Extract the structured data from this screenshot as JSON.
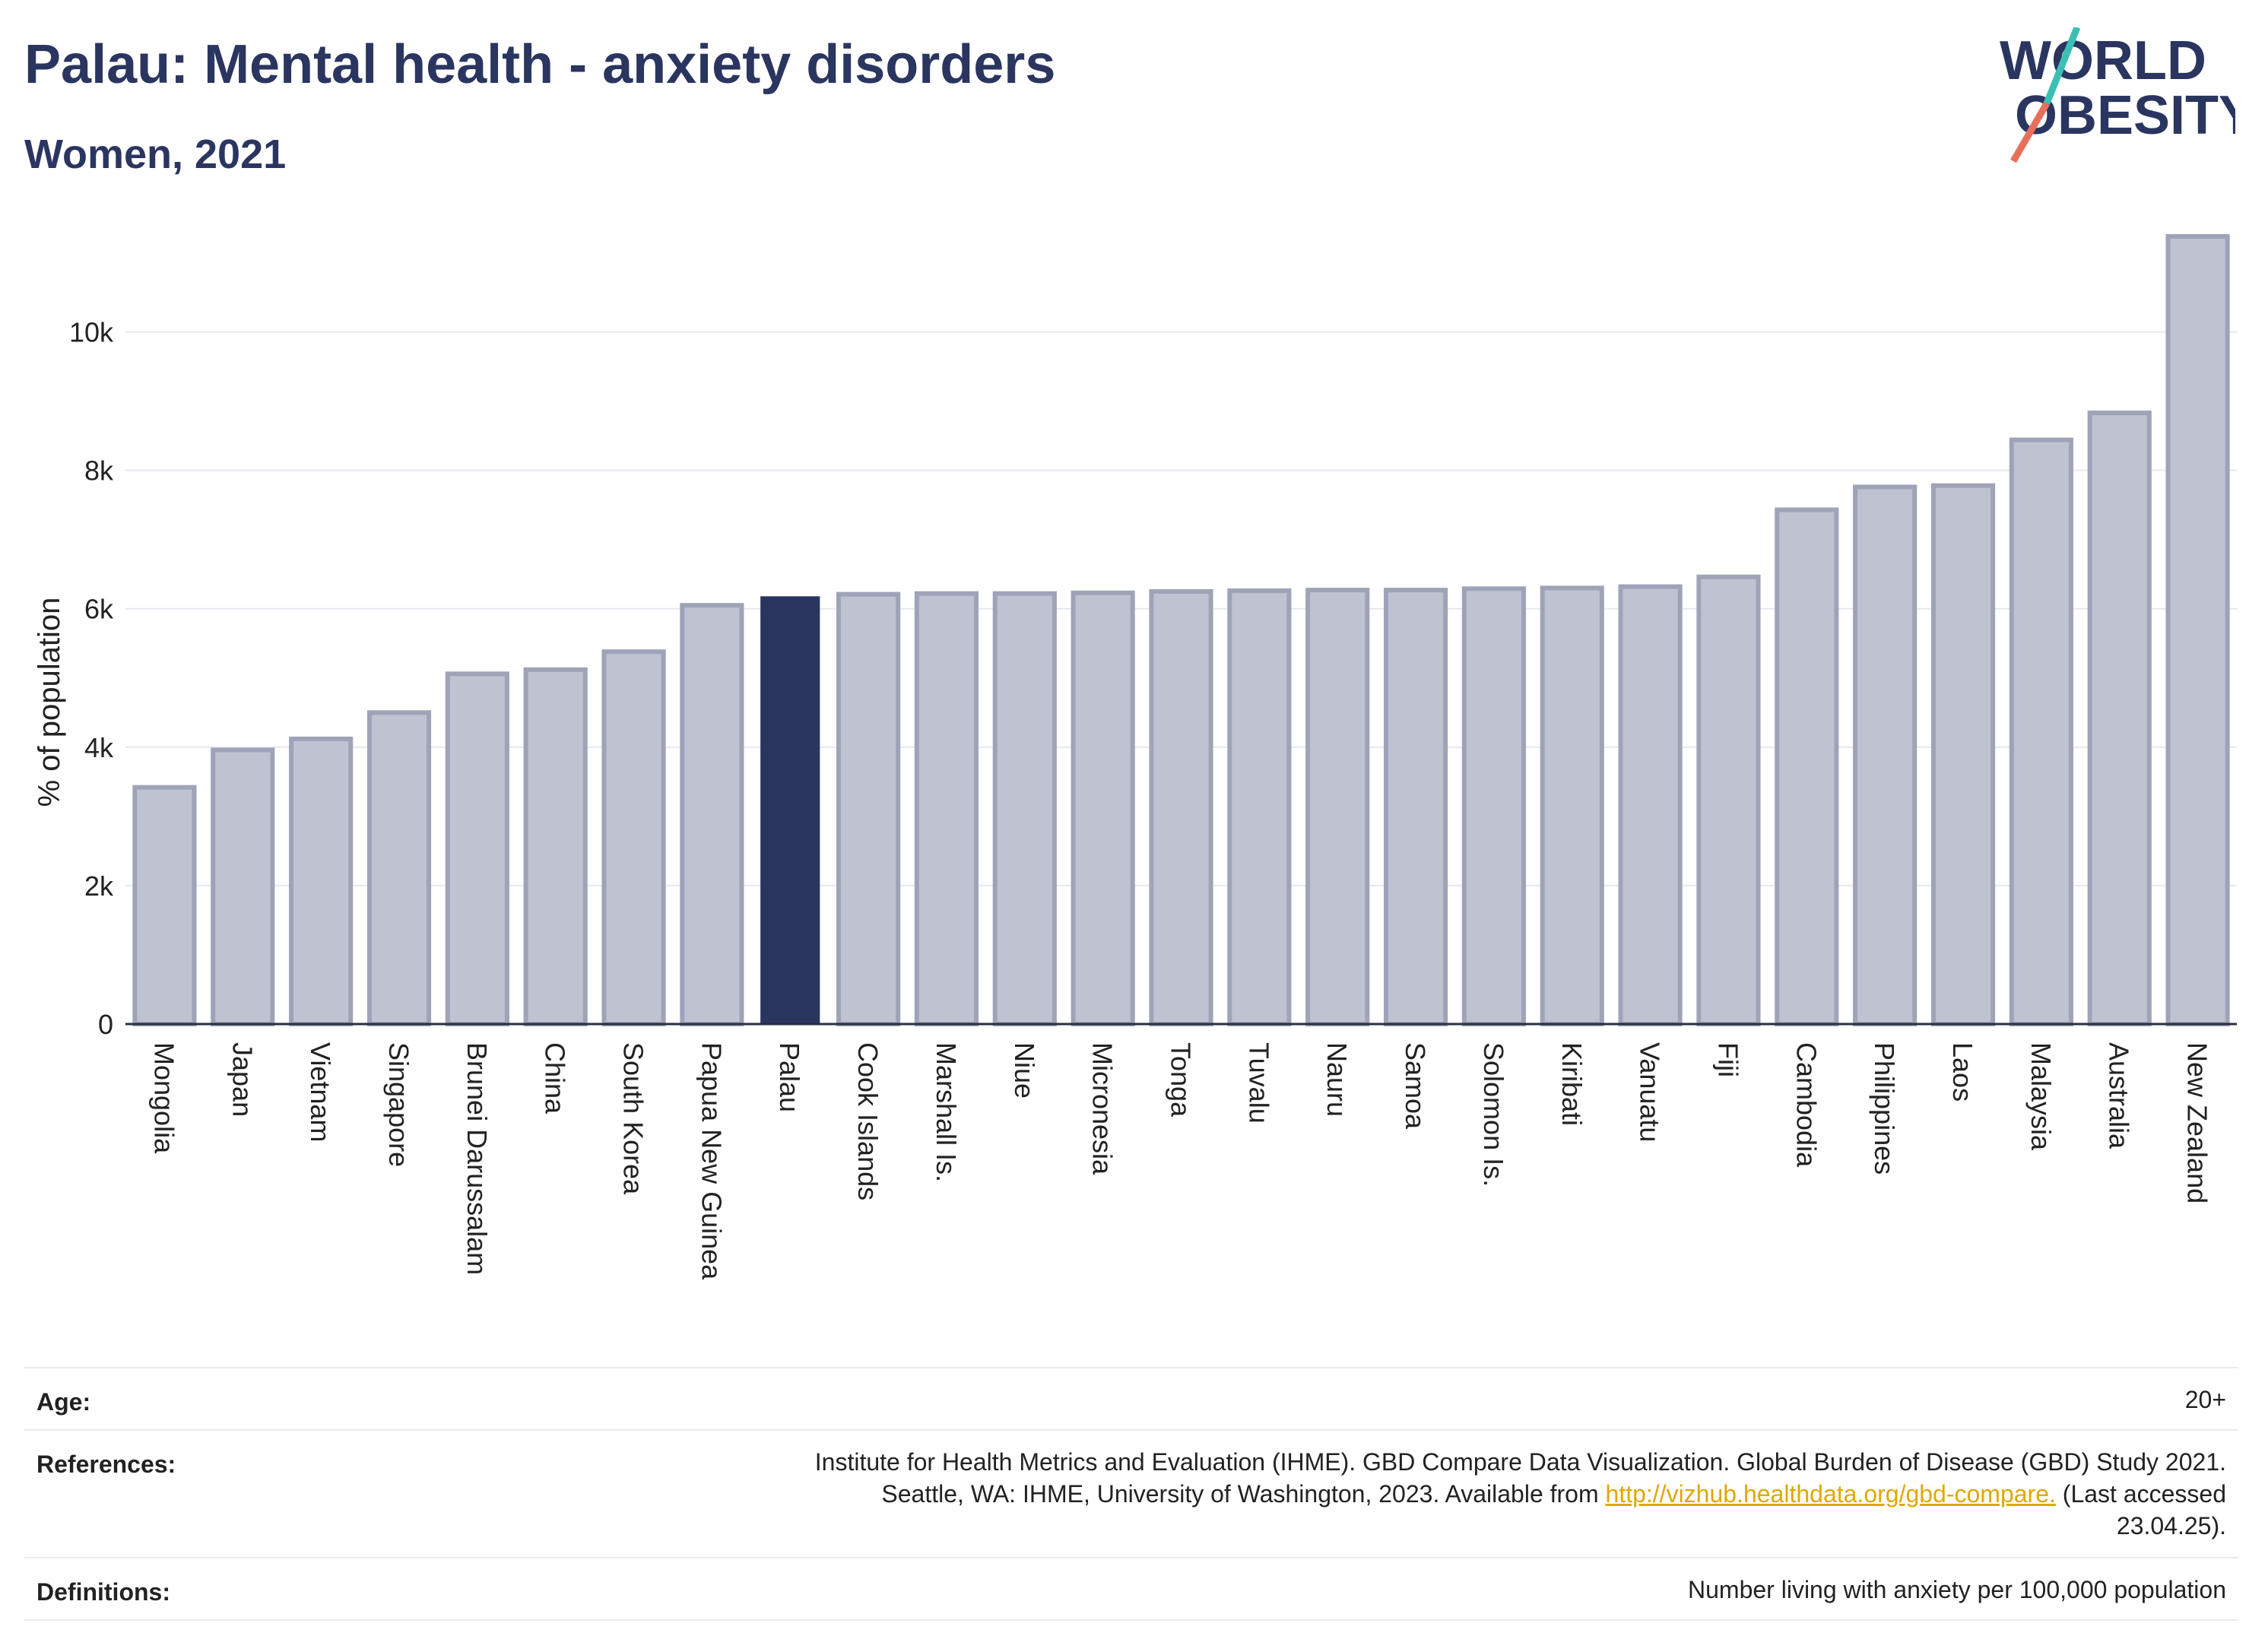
{
  "header": {
    "title": "Palau: Mental health - anxiety disorders",
    "subtitle": "Women, 2021"
  },
  "logo": {
    "line1": "WORLD",
    "line2": "OBESITY",
    "colors": {
      "text": "#2a3560",
      "slash_teal": "#3bbfb4",
      "slash_coral": "#e8705a"
    }
  },
  "chart_data": {
    "type": "bar",
    "categories": [
      "Mongolia",
      "Japan",
      "Vietnam",
      "Singapore",
      "Brunei Darussalam",
      "China",
      "South Korea",
      "Papua New Guinea",
      "Palau",
      "Cook Islands",
      "Marshall Is.",
      "Niue",
      "Micronesia",
      "Tonga",
      "Tuvalu",
      "Nauru",
      "Samoa",
      "Solomon Is.",
      "Kiribati",
      "Vanuatu",
      "Fiji",
      "Cambodia",
      "Philippines",
      "Laos",
      "Malaysia",
      "Australia",
      "New Zealand"
    ],
    "values": [
      3420,
      3960,
      4120,
      4500,
      5060,
      5120,
      5380,
      6050,
      6180,
      6210,
      6220,
      6220,
      6230,
      6250,
      6260,
      6270,
      6270,
      6290,
      6300,
      6320,
      6460,
      7430,
      7760,
      7780,
      8440,
      8830,
      11380
    ],
    "highlight": "Palau",
    "ylabel": "% of population",
    "ylim": [
      0,
      11500
    ],
    "yticks": [
      0,
      2000,
      4000,
      6000,
      8000,
      10000
    ],
    "ytick_labels": [
      "0",
      "2k",
      "4k",
      "6k",
      "8k",
      "10k"
    ],
    "grid": true,
    "colors": {
      "bar": "#bfc2d0",
      "bar_edge": "#9ea3b8",
      "highlight": "#2a3560"
    }
  },
  "info": {
    "age_label": "Age:",
    "age_value": "20+",
    "references_label": "References:",
    "references_line1": "Institute for Health Metrics and Evaluation (IHME). GBD Compare Data Visualization. Global Burden of Disease (GBD) Study 2021.",
    "references_line2_pre": "Seattle, WA: IHME, University of Washington, 2023. Available from ",
    "references_link": "http://vizhub.healthdata.org/gbd-compare.",
    "references_line2_post": " (Last accessed",
    "references_line3": "23.04.25).",
    "definitions_label": "Definitions:",
    "definitions_value": "Number living with anxiety per 100,000 population"
  }
}
